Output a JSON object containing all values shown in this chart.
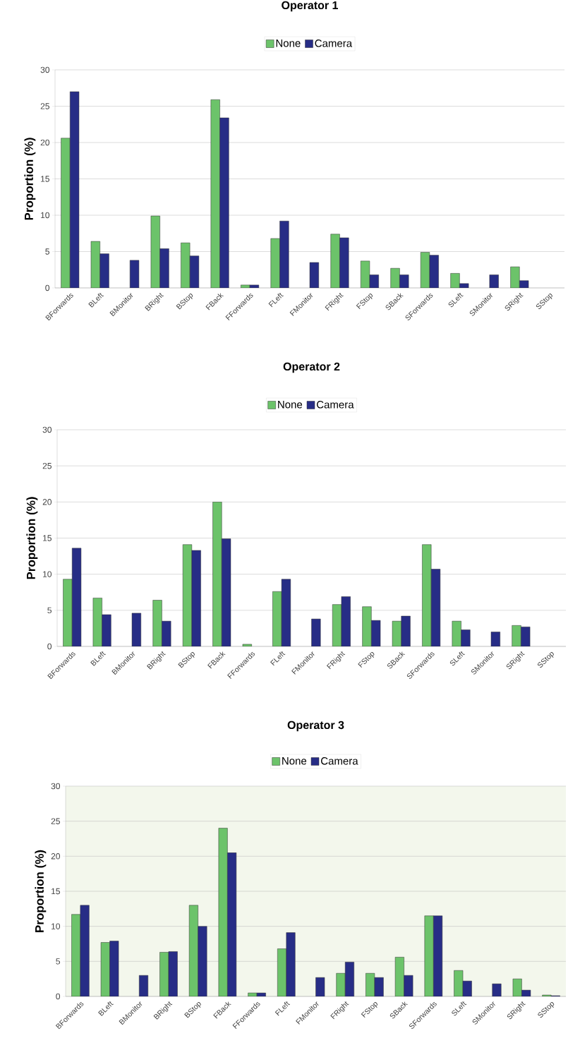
{
  "chart_data": [
    {
      "type": "bar",
      "title": "Operator 1",
      "ylabel": "Proportion (%)",
      "categories": [
        "BForwards",
        "BLeft",
        "BMonitor",
        "BRight",
        "BStop",
        "FBack",
        "FForwards",
        "FLeft",
        "FMonitor",
        "FRight",
        "FStop",
        "SBack",
        "SForwards",
        "SLeft",
        "SMonitor",
        "SRight",
        "SStop"
      ],
      "series": [
        {
          "name": "None",
          "color": "#6cc36a",
          "values": [
            20.6,
            6.4,
            null,
            9.9,
            6.2,
            25.9,
            0.4,
            6.8,
            null,
            7.4,
            3.7,
            2.7,
            4.9,
            2.0,
            null,
            2.9,
            null
          ]
        },
        {
          "name": "Camera",
          "color": "#272d86",
          "values": [
            27.0,
            4.7,
            3.8,
            5.4,
            4.4,
            23.4,
            0.4,
            9.2,
            3.5,
            6.9,
            1.8,
            1.8,
            4.5,
            0.6,
            1.8,
            1.0,
            null
          ]
        }
      ],
      "ylim": [
        0,
        30
      ],
      "yticks": [
        0,
        5,
        10,
        15,
        20,
        25,
        30
      ],
      "grid": "y",
      "legend": "top"
    },
    {
      "type": "bar",
      "title": "Operator 2",
      "ylabel": "Proportion (%)",
      "categories": [
        "BForwards",
        "BLeft",
        "BMonitor",
        "BRight",
        "BStop",
        "FBack",
        "FForwards",
        "FLeft",
        "FMonitor",
        "FRight",
        "FStop",
        "SBack",
        "SForwards",
        "SLeft",
        "SMonitor",
        "SRight",
        "SStop"
      ],
      "series": [
        {
          "name": "None",
          "color": "#6cc36a",
          "values": [
            9.3,
            6.7,
            null,
            6.4,
            14.1,
            20.0,
            0.3,
            7.6,
            null,
            5.8,
            5.5,
            3.5,
            14.1,
            3.5,
            null,
            2.9,
            null
          ]
        },
        {
          "name": "Camera",
          "color": "#272d86",
          "values": [
            13.6,
            4.4,
            4.6,
            3.5,
            13.3,
            14.9,
            null,
            9.3,
            3.8,
            6.9,
            3.6,
            4.2,
            10.7,
            2.3,
            2.0,
            2.7,
            null
          ]
        }
      ],
      "ylim": [
        0,
        30
      ],
      "yticks": [
        0,
        5,
        10,
        15,
        20,
        25,
        30
      ],
      "grid": "y",
      "legend": "top"
    },
    {
      "type": "bar",
      "title": "Operator 3",
      "ylabel": "Proportion (%)",
      "categories": [
        "BForwards",
        "BLeft",
        "BMonitor",
        "BRight",
        "BStop",
        "FBack",
        "FForwards",
        "FLeft",
        "FMonitor",
        "FRight",
        "FStop",
        "SBack",
        "SForwards",
        "SLeft",
        "SMonitor",
        "SRight",
        "SStop"
      ],
      "series": [
        {
          "name": "None",
          "color": "#6cc36a",
          "values": [
            11.7,
            7.7,
            null,
            6.3,
            13.0,
            24.0,
            0.5,
            6.8,
            null,
            3.3,
            3.3,
            5.6,
            11.5,
            3.7,
            null,
            2.5,
            0.2
          ]
        },
        {
          "name": "Camera",
          "color": "#272d86",
          "values": [
            13.0,
            7.9,
            3.0,
            6.4,
            10.0,
            20.5,
            0.5,
            9.1,
            2.7,
            4.9,
            2.7,
            3.0,
            11.5,
            2.2,
            1.8,
            0.9,
            0.1
          ]
        }
      ],
      "ylim": [
        0,
        30
      ],
      "yticks": [
        0,
        5,
        10,
        15,
        20,
        25,
        30
      ],
      "grid": "y",
      "legend": "top"
    }
  ]
}
